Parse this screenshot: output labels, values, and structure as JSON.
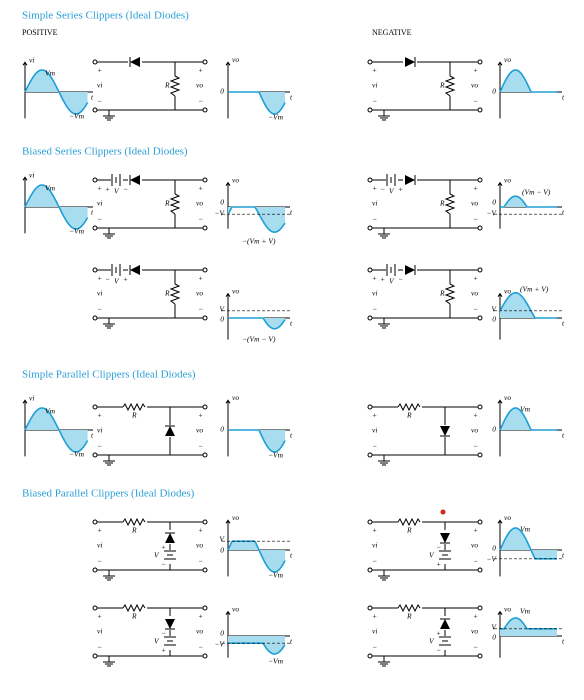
{
  "headers": {
    "positive": "POSITIVE",
    "negative": "NEGATIVE"
  },
  "sections": [
    {
      "title": "Simple Series Clippers (Ideal Diodes)"
    },
    {
      "title": "Biased Series Clippers (Ideal Diodes)"
    },
    {
      "title": "Simple Parallel Clippers (Ideal Diodes)"
    },
    {
      "title": "Biased Parallel Clippers (Ideal Diodes)"
    }
  ],
  "symbols": {
    "vi": "vi",
    "vo": "vo",
    "Vm": "Vm",
    "neg_Vm": "−Vm",
    "t": "t",
    "R": "R",
    "V": "V",
    "neg_V": "−V",
    "plus": "+",
    "minus": "−",
    "zero": "0"
  },
  "output_labels": [
    "−(Vm + V)",
    "(Vm − V)",
    "−(Vm − V)",
    "(Vm + V)"
  ]
}
